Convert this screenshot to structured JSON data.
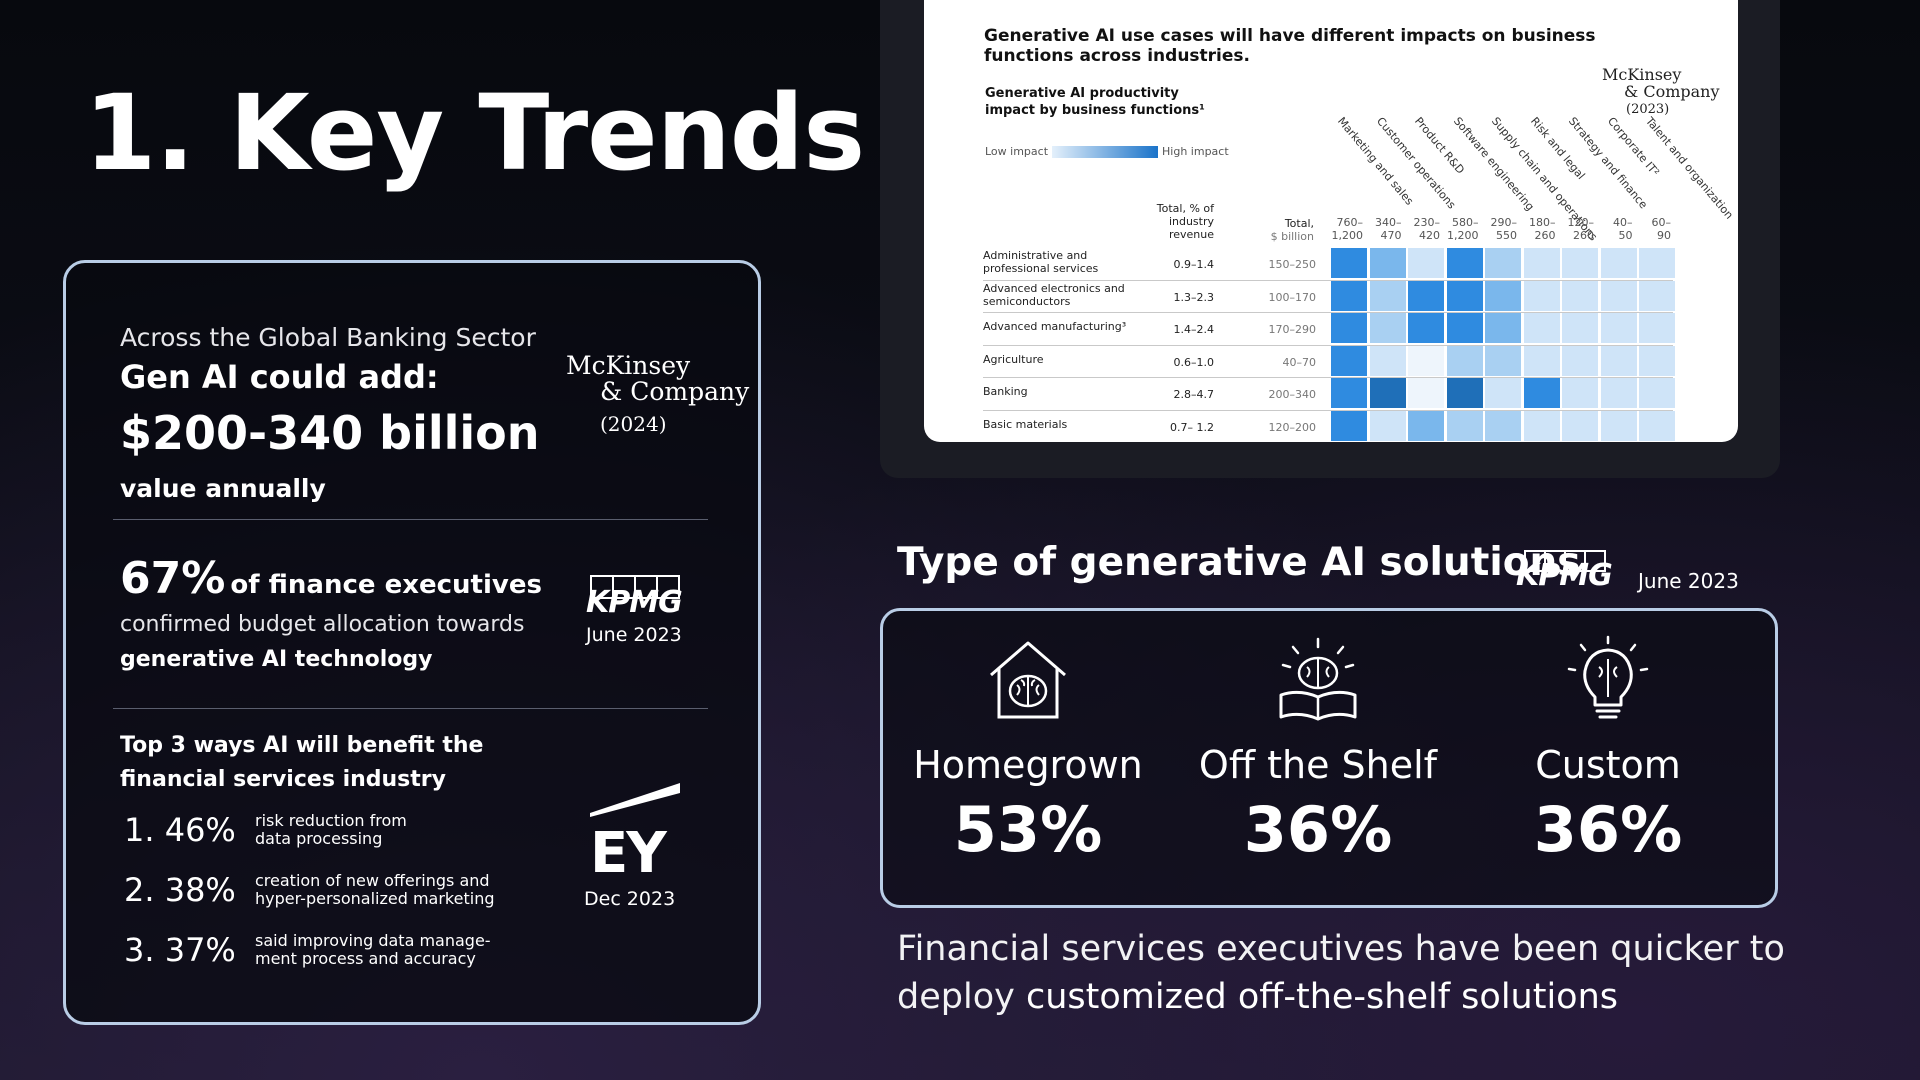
{
  "title": "1. Key Trends",
  "left_card": {
    "banking": {
      "line1": "Across the Global Banking Sector",
      "line2": "Gen AI could add:",
      "amount": "$200-340 billion",
      "line3": "value annually",
      "source": {
        "name_line1": "McKinsey",
        "name_line2": "& Company",
        "year": "(2024)"
      }
    },
    "finance": {
      "pct": "67%",
      "bold": "of finance executives",
      "line2": "confirmed budget allocation towards",
      "line3": "generative AI technology",
      "source": {
        "name": "KPMG",
        "date": "June 2023"
      }
    },
    "top3": {
      "heading_line1": "Top 3 ways AI will benefit the",
      "heading_line2": "financial services industry",
      "items": [
        {
          "num": "1. 46%",
          "desc1": "risk reduction from",
          "desc2": "data processing"
        },
        {
          "num": "2. 38%",
          "desc1": "creation of new offerings and",
          "desc2": "hyper-personalized marketing"
        },
        {
          "num": "3. 37%",
          "desc1": "said improving data manage-",
          "desc2": "ment process and accuracy"
        }
      ],
      "source": {
        "name": "EY",
        "date": "Dec 2023"
      }
    }
  },
  "chart_panel": {
    "title": "Generative AI use cases will have different impacts on business functions across industries.",
    "subtitle_line1": "Generative AI productivity",
    "subtitle_line2": "impact by business functions¹",
    "legend_low": "Low impact",
    "legend_high": "High impact",
    "source": {
      "name_line1": "McKinsey",
      "name_line2": "& Company",
      "year": "(2023)"
    },
    "head_total_rev": [
      "Total, % of",
      "industry",
      "revenue"
    ],
    "head_total_bil": [
      "Total,",
      "$ billion"
    ]
  },
  "chart_data": {
    "type": "heatmap",
    "title": "Generative AI use cases will have different impacts on business functions across industries.",
    "functions": [
      "Marketing and sales",
      "Customer operations",
      "Product R&D",
      "Software engineering",
      "Supply chain and operations",
      "Risk and legal",
      "Strategy and finance",
      "Corporate IT²",
      "Talent and organization"
    ],
    "function_totals": [
      "760–1,200",
      "340–470",
      "230–420",
      "580–1,200",
      "290–550",
      "180–260",
      "120–260",
      "40–50",
      "60–90"
    ],
    "industries": [
      {
        "name": "Administrative and professional services",
        "revenue_pct": "0.9–1.4",
        "billion": "150–250",
        "impact": [
          4,
          3,
          1,
          4,
          2,
          1,
          1,
          1,
          1
        ]
      },
      {
        "name": "Advanced electronics and semiconductors",
        "revenue_pct": "1.3–2.3",
        "billion": "100–170",
        "impact": [
          4,
          2,
          4,
          4,
          3,
          1,
          1,
          1,
          1
        ]
      },
      {
        "name": "Advanced manufacturing³",
        "revenue_pct": "1.4–2.4",
        "billion": "170–290",
        "impact": [
          4,
          2,
          4,
          4,
          3,
          1,
          1,
          1,
          1
        ]
      },
      {
        "name": "Agriculture",
        "revenue_pct": "0.6–1.0",
        "billion": "40–70",
        "impact": [
          4,
          1,
          0,
          2,
          2,
          1,
          1,
          1,
          1
        ]
      },
      {
        "name": "Banking",
        "revenue_pct": "2.8–4.7",
        "billion": "200–340",
        "impact": [
          4,
          5,
          0,
          5,
          1,
          4,
          1,
          1,
          1
        ]
      },
      {
        "name": "Basic materials",
        "revenue_pct": "0.7– 1.2",
        "billion": "120–200",
        "impact": [
          4,
          1,
          3,
          2,
          2,
          1,
          1,
          1,
          1
        ]
      }
    ],
    "scale": [
      "Low impact",
      "High impact"
    ]
  },
  "solutions": {
    "title": "Type of generative AI solutions",
    "source": {
      "name": "KPMG",
      "date": "June 2023"
    },
    "items": [
      {
        "name": "Homegrown",
        "value": "53%",
        "icon": "brain-house-icon"
      },
      {
        "name": "Off the Shelf",
        "value": "36%",
        "icon": "brain-book-icon"
      },
      {
        "name": "Custom",
        "value": "36%",
        "icon": "brain-lightbulb-icon"
      }
    ],
    "footer_plain": "Financial services executives have been quicker to deploy",
    "footer_bold": "customized off-the-shelf solutions"
  },
  "colors": {
    "card_border": "#b9cde6",
    "heat_scale": [
      "#eef5fc",
      "#cfe4f8",
      "#a9d0f2",
      "#7ab7ec",
      "#2f8be0",
      "#1f6fb8"
    ]
  }
}
